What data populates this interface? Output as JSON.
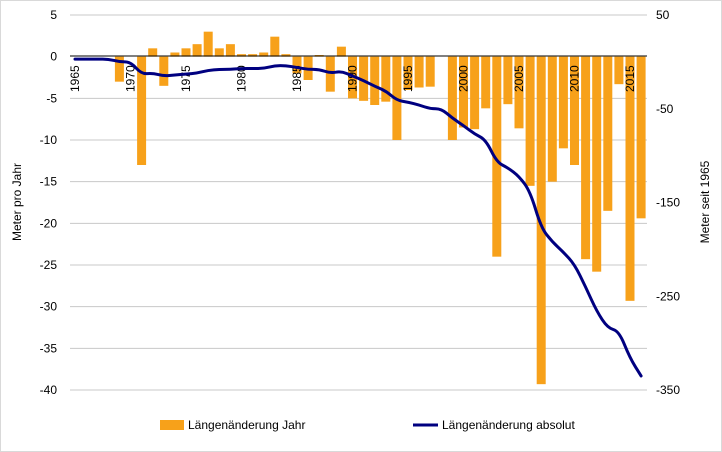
{
  "chart_data": {
    "type": "bar+line",
    "title": "",
    "ylabel_left": "Meter pro Jahr",
    "ylabel_right": "Meter seit 1965",
    "ylim_left": [
      -40,
      5
    ],
    "ylim_right": [
      -350,
      50
    ],
    "yticks_left": [
      5,
      0,
      -5,
      -10,
      -15,
      -20,
      -25,
      -30,
      -35,
      -40
    ],
    "yticks_right": [
      50,
      -50,
      -150,
      -250,
      -350
    ],
    "x_tick_labels": [
      "1965",
      "1970",
      "1975",
      "1980",
      "1985",
      "1990",
      "1995",
      "2000",
      "2005",
      "2010",
      "2015"
    ],
    "years": [
      1965,
      1966,
      1967,
      1968,
      1969,
      1970,
      1971,
      1972,
      1973,
      1974,
      1975,
      1976,
      1977,
      1978,
      1979,
      1980,
      1981,
      1982,
      1983,
      1984,
      1985,
      1986,
      1987,
      1988,
      1989,
      1990,
      1991,
      1992,
      1993,
      1994,
      1995,
      1996,
      1997,
      1998,
      1999,
      2000,
      2001,
      2002,
      2003,
      2004,
      2005,
      2006,
      2007,
      2008,
      2009,
      2010,
      2011,
      2012,
      2013,
      2014,
      2015,
      2016
    ],
    "series": [
      {
        "name": "Längenänderung Jahr",
        "type": "bar",
        "axis": "left",
        "color": "#f7a11a",
        "values": [
          0,
          0,
          0,
          0,
          -3,
          0,
          -13,
          1,
          -3.5,
          0.5,
          1,
          1.5,
          3,
          1,
          1.5,
          0.3,
          0.3,
          0.5,
          2.4,
          0.3,
          -2,
          -2.8,
          0.2,
          -4.2,
          1.2,
          -5,
          -5.3,
          -5.8,
          -5.4,
          -10,
          -4,
          -3.7,
          -3.6,
          0,
          -10,
          -8.5,
          -8.7,
          -6.2,
          -24,
          -5.7,
          -8.6,
          -15.5,
          -39.3,
          -15,
          -11,
          -13,
          -24.3,
          -25.8,
          -18.5,
          -3.3,
          -29.3,
          -19.4
        ]
      },
      {
        "name": "Längenänderung absolut",
        "type": "line",
        "axis": "right",
        "color": "#000080",
        "values": [
          3,
          3,
          3,
          3,
          0,
          0,
          -13,
          -12,
          -15,
          -14,
          -13,
          -12,
          -9,
          -8,
          -8,
          -7,
          -7,
          -7,
          -4,
          -4,
          -6,
          -8,
          -8,
          -12,
          -10,
          -15,
          -20,
          -26,
          -31,
          -41,
          -43,
          -46,
          -50,
          -50,
          -60,
          -68,
          -77,
          -83,
          -107,
          -113,
          -122,
          -138,
          -177,
          -192,
          -203,
          -216,
          -240,
          -266,
          -284,
          -287,
          -316,
          -335
        ]
      }
    ]
  }
}
